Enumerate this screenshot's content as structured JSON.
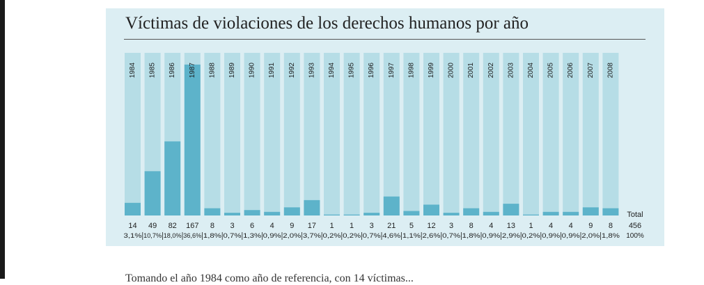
{
  "chart_data": {
    "type": "bar",
    "title": "Víctimas de violaciones de los derechos humanos por año",
    "categories": [
      "1984",
      "1985",
      "1986",
      "1987",
      "1988",
      "1989",
      "1990",
      "1991",
      "1992",
      "1993",
      "1994",
      "1995",
      "1996",
      "1997",
      "1998",
      "1999",
      "2000",
      "2001",
      "2002",
      "2003",
      "2004",
      "2005",
      "2006",
      "2007",
      "2008"
    ],
    "values": [
      14,
      49,
      82,
      167,
      8,
      3,
      6,
      4,
      9,
      17,
      1,
      1,
      3,
      21,
      5,
      12,
      3,
      8,
      4,
      13,
      1,
      4,
      4,
      9,
      8
    ],
    "percentages": [
      "3,1%",
      "10,7%",
      "18,0%",
      "36,6%",
      "1,8%",
      "0,7%",
      "1,3%",
      "0,9%",
      "2,0%",
      "3,7%",
      "0,2%",
      "0,2%",
      "0,7%",
      "4,6%",
      "1,1%",
      "2,6%",
      "0,7%",
      "1,8%",
      "0,9%",
      "2,9%",
      "0,2%",
      "0,9%",
      "0,9%",
      "2,0%",
      "1,8%"
    ],
    "total_label": "Total",
    "total_value": "456",
    "total_percent": "100%",
    "ylim": [
      0,
      180
    ],
    "grid": false,
    "colors": {
      "bar_background": "#b6dde6",
      "bar_fill": "#5db3ca",
      "panel_background": "#dceef3"
    }
  },
  "below_text": "Tomando el año 1984 como año de referencia, con 14 víctimas..."
}
